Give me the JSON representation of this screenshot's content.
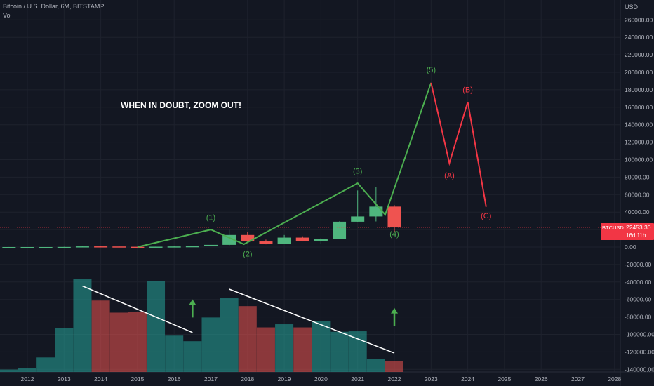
{
  "header": {
    "symbol_line": "Bitcoin / U.S. Dollar, 6M, BITSTAMP",
    "volume_label": "Vol"
  },
  "chart_data": {
    "type": "candlestick",
    "currency": "USD",
    "annotation": "WHEN IN DOUBT, ZOOM OUT!",
    "y_ticks": [
      260000,
      240000,
      220000,
      200000,
      180000,
      160000,
      140000,
      120000,
      100000,
      80000,
      60000,
      40000,
      20000,
      0,
      -20000,
      -40000,
      -60000,
      -80000,
      -100000,
      -120000,
      -140000
    ],
    "y_tick_labels": [
      "260000.00",
      "240000.00",
      "220000.00",
      "200000.00",
      "180000.00",
      "160000.00",
      "140000.00",
      "120000.00",
      "100000.00",
      "80000.00",
      "60000.00",
      "40000.00",
      "20000.00",
      "0.00",
      "-20000.00",
      "-40000.00",
      "-60000.00",
      "-80000.00",
      "-100000.00",
      "-120000.00",
      "-140000.00"
    ],
    "ylim": [
      -145000,
      272000
    ],
    "x_ticks": [
      "2012",
      "2013",
      "2014",
      "2015",
      "2016",
      "2017",
      "2018",
      "2019",
      "2020",
      "2021",
      "2022",
      "2023",
      "2024",
      "2025",
      "2026",
      "2027",
      "2028"
    ],
    "price_label": {
      "symbol": "BTCUSD",
      "value": "22453.30",
      "countdown": "16d 11h",
      "price": 22453.3
    },
    "candles": [
      {
        "t": 2011.5,
        "o": 0,
        "h": 60,
        "l": 0,
        "c": 10
      },
      {
        "t": 2012.0,
        "o": 5,
        "h": 15,
        "l": 4,
        "c": 12
      },
      {
        "t": 2012.5,
        "o": 12,
        "h": 20,
        "l": 8,
        "c": 14
      },
      {
        "t": 2013.0,
        "o": 14,
        "h": 270,
        "l": 13,
        "c": 120
      },
      {
        "t": 2013.5,
        "o": 120,
        "h": 1200,
        "l": 70,
        "c": 750
      },
      {
        "t": 2014.0,
        "o": 750,
        "h": 950,
        "l": 340,
        "c": 640
      },
      {
        "t": 2014.5,
        "o": 640,
        "h": 680,
        "l": 280,
        "c": 320
      },
      {
        "t": 2015.0,
        "o": 320,
        "h": 330,
        "l": 160,
        "c": 265
      },
      {
        "t": 2015.5,
        "o": 265,
        "h": 500,
        "l": 210,
        "c": 430
      },
      {
        "t": 2016.0,
        "o": 430,
        "h": 780,
        "l": 360,
        "c": 670
      },
      {
        "t": 2016.5,
        "o": 670,
        "h": 1000,
        "l": 480,
        "c": 960
      },
      {
        "t": 2017.0,
        "o": 960,
        "h": 2900,
        "l": 750,
        "c": 2500
      },
      {
        "t": 2017.5,
        "o": 2500,
        "h": 19700,
        "l": 1800,
        "c": 13800
      },
      {
        "t": 2018.0,
        "o": 13800,
        "h": 17200,
        "l": 5800,
        "c": 6400
      },
      {
        "t": 2018.5,
        "o": 6400,
        "h": 8500,
        "l": 3100,
        "c": 3700
      },
      {
        "t": 2019.0,
        "o": 3700,
        "h": 13800,
        "l": 3400,
        "c": 10800
      },
      {
        "t": 2019.5,
        "o": 10800,
        "h": 12300,
        "l": 6400,
        "c": 7200
      },
      {
        "t": 2020.0,
        "o": 7200,
        "h": 10500,
        "l": 3800,
        "c": 9100
      },
      {
        "t": 2020.5,
        "o": 9100,
        "h": 29300,
        "l": 8900,
        "c": 29000
      },
      {
        "t": 2021.0,
        "o": 29000,
        "h": 64800,
        "l": 28800,
        "c": 35000
      },
      {
        "t": 2021.5,
        "o": 35000,
        "h": 69000,
        "l": 29300,
        "c": 46300
      },
      {
        "t": 2022.0,
        "o": 46300,
        "h": 48000,
        "l": 17600,
        "c": 22453
      }
    ],
    "volume": [
      {
        "t": 2011.5,
        "v": 0.1,
        "up": true
      },
      {
        "t": 2012.0,
        "v": 0.15,
        "up": true
      },
      {
        "t": 2012.5,
        "v": 0.6,
        "up": true
      },
      {
        "t": 2013.0,
        "v": 1.8,
        "up": true
      },
      {
        "t": 2013.5,
        "v": 3.85,
        "up": true
      },
      {
        "t": 2014.0,
        "v": 2.95,
        "up": false
      },
      {
        "t": 2014.5,
        "v": 2.45,
        "up": false
      },
      {
        "t": 2015.0,
        "v": 2.47,
        "up": false
      },
      {
        "t": 2015.5,
        "v": 3.75,
        "up": true
      },
      {
        "t": 2016.0,
        "v": 1.5,
        "up": true
      },
      {
        "t": 2016.5,
        "v": 1.27,
        "up": true
      },
      {
        "t": 2017.0,
        "v": 2.25,
        "up": true
      },
      {
        "t": 2017.5,
        "v": 3.06,
        "up": true
      },
      {
        "t": 2018.0,
        "v": 2.72,
        "up": false
      },
      {
        "t": 2018.5,
        "v": 1.84,
        "up": false
      },
      {
        "t": 2019.0,
        "v": 1.97,
        "up": true
      },
      {
        "t": 2019.5,
        "v": 1.84,
        "up": false
      },
      {
        "t": 2020.0,
        "v": 2.1,
        "up": true
      },
      {
        "t": 2020.5,
        "v": 1.66,
        "up": true
      },
      {
        "t": 2021.0,
        "v": 1.68,
        "up": true
      },
      {
        "t": 2021.5,
        "v": 0.55,
        "up": true
      },
      {
        "t": 2022.0,
        "v": 0.45,
        "up": false
      }
    ],
    "elliott_wave_path": [
      {
        "t": 2015.0,
        "v": 0
      },
      {
        "t": 2017.0,
        "v": 20000
      },
      {
        "t": 2017.9,
        "v": 3200
      },
      {
        "t": 2021.0,
        "v": 73000
      },
      {
        "t": 2021.75,
        "v": 37000
      },
      {
        "t": 2023.0,
        "v": 188000
      }
    ],
    "correction_path": [
      {
        "t": 2023.0,
        "v": 188000
      },
      {
        "t": 2023.5,
        "v": 96000
      },
      {
        "t": 2024.0,
        "v": 166000
      },
      {
        "t": 2024.5,
        "v": 46000
      }
    ],
    "wave_labels": [
      {
        "text": "(1)",
        "t": 2017.0,
        "v": 31000,
        "color": "#4caf50"
      },
      {
        "text": "(2)",
        "t": 2018.0,
        "v": -11000,
        "color": "#4caf50"
      },
      {
        "text": "(3)",
        "t": 2021.0,
        "v": 84000,
        "color": "#4caf50"
      },
      {
        "text": "(4)",
        "t": 2022.0,
        "v": 12000,
        "color": "#4caf50"
      },
      {
        "text": "(5)",
        "t": 2023.0,
        "v": 200000,
        "color": "#4caf50"
      },
      {
        "text": "(A)",
        "t": 2023.5,
        "v": 79000,
        "color": "#f23645"
      },
      {
        "text": "(B)",
        "t": 2024.0,
        "v": 177000,
        "color": "#f23645"
      },
      {
        "text": "(C)",
        "t": 2024.5,
        "v": 33000,
        "color": "#f23645"
      }
    ],
    "volume_trendlines": [
      {
        "t1": 2013.5,
        "v1": 3.55,
        "t2": 2016.5,
        "v2": 1.63
      },
      {
        "t1": 2017.5,
        "v1": 3.42,
        "t2": 2022.0,
        "v2": 0.78
      }
    ],
    "volume_arrows": [
      {
        "t": 2016.5,
        "v_bottom": 2.25,
        "v_top": 3.0
      },
      {
        "t": 2022.0,
        "v_bottom": 1.9,
        "v_top": 2.65
      }
    ],
    "colors": {
      "background": "#131722",
      "grid": "#1e222d",
      "up": "#26a69a",
      "up_candle": "#4fb67e",
      "down": "#ef5350",
      "wave_green": "#4caf50",
      "wave_red": "#f23645",
      "axis_text": "#b2b5be",
      "price_label": "#f23645"
    }
  }
}
